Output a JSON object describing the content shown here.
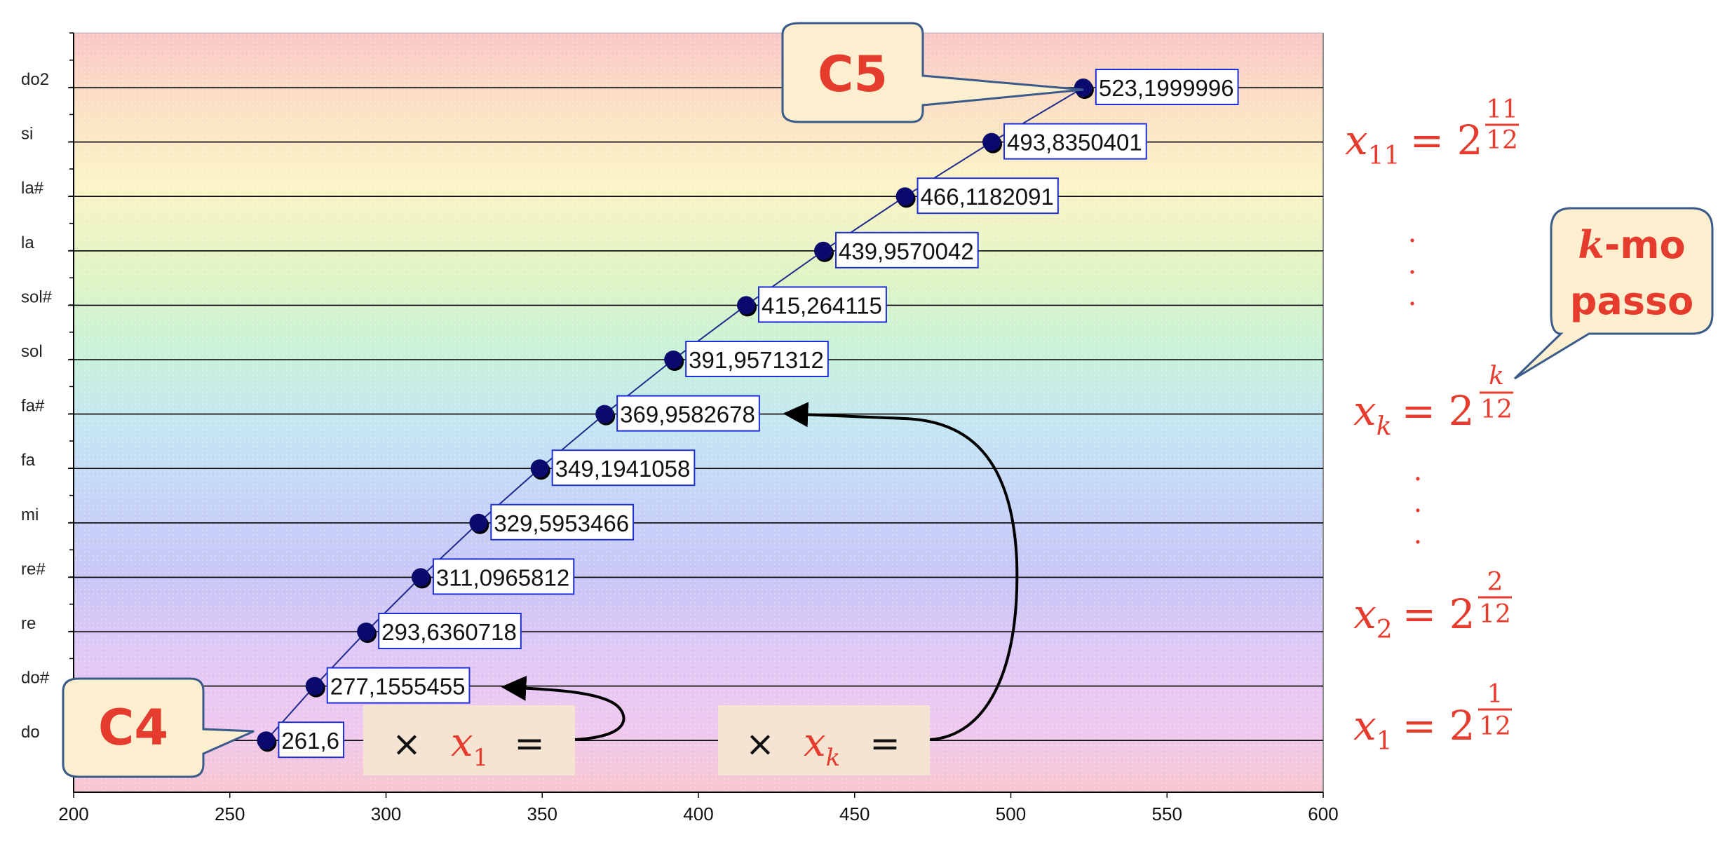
{
  "chart_data": {
    "type": "scatter",
    "xlim": [
      200,
      600
    ],
    "x_ticks": [
      "200",
      "250",
      "300",
      "350",
      "400",
      "450",
      "500",
      "550",
      "600"
    ],
    "categories": [
      "do",
      "do#",
      "re",
      "re#",
      "mi",
      "fa",
      "fa#",
      "sol",
      "sol#",
      "la",
      "la#",
      "si",
      "do2"
    ],
    "x": [
      261.6,
      277.1555455,
      293.6360718,
      311.0965812,
      329.5953466,
      349.1941058,
      369.9582678,
      391.9571312,
      415.264115,
      439.9570042,
      466.1182091,
      493.8350401,
      523.1999996
    ],
    "data_labels": [
      "261,6",
      "277,1555455",
      "293,6360718",
      "311,0965812",
      "329,5953466",
      "349,1941058",
      "369,9582678",
      "391,9571312",
      "415,264115",
      "439,9570042",
      "466,1182091",
      "493,8350401",
      "523,1999996"
    ],
    "grid": true,
    "marker_color": "#0a0a6e",
    "line_color": "#1f2b8c",
    "label_border_color": "#1f2fd6"
  },
  "callouts": {
    "c5": "C5",
    "c4": "C4",
    "kmo_var": "k",
    "kmo_rest": "-mo",
    "kmo_line2": "passo"
  },
  "formulas": {
    "x11_base": "x",
    "x11_sub": "11",
    "x11_eq": "= 2",
    "x11_num": "11",
    "x11_den": "12",
    "xk_base": "x",
    "xk_sub": "k",
    "xk_eq": "= 2",
    "xk_num": "k",
    "xk_den": "12",
    "x2_base": "x",
    "x2_sub": "2",
    "x2_eq": "= 2",
    "x2_num": "2",
    "x2_den": "12",
    "x1_base": "x",
    "x1_sub": "1",
    "x1_eq": "= 2",
    "x1_num": "1",
    "x1_den": "12",
    "dot": "."
  },
  "operators": {
    "times": "×",
    "equals": "=",
    "op1_var": "x",
    "op1_sub": "1",
    "opk_var": "x",
    "opk_sub": "k"
  },
  "colors": {
    "accent_red": "#e63c2e",
    "callout_fill": "#fbefcf",
    "callout_stroke": "#3a5a8a",
    "op_box_fill": "#f6e4d2"
  }
}
